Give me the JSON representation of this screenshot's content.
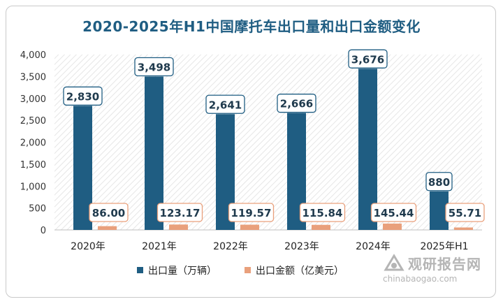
{
  "chart_data": {
    "type": "bar",
    "title": "2020-2025年H1中国摩托车出口量和出口金额变化",
    "categories": [
      "2020年",
      "2021年",
      "2022年",
      "2023年",
      "2024年",
      "2025年H1"
    ],
    "series": [
      {
        "name": "出口量（万辆）",
        "values": [
          2830,
          3498,
          2641,
          2666,
          3676,
          880
        ],
        "labels": [
          "2,830",
          "3,498",
          "2,641",
          "2,666",
          "3,676",
          "880"
        ],
        "color": "#1f5d82"
      },
      {
        "name": "出口金额（亿美元）",
        "values": [
          86.0,
          123.17,
          119.57,
          115.84,
          145.44,
          55.71
        ],
        "labels": [
          "86.00",
          "123.17",
          "119.57",
          "115.84",
          "145.44",
          "55.71"
        ],
        "color": "#e9a07c"
      }
    ],
    "ylim": [
      0,
      4000
    ],
    "yticks": [
      0,
      500,
      1000,
      1500,
      2000,
      2500,
      3000,
      3500,
      4000
    ],
    "ytick_labels": [
      "0",
      "500",
      "1,000",
      "1,500",
      "2,000",
      "2,500",
      "3,000",
      "3,500",
      "4,000"
    ],
    "grid": false,
    "legend_position": "bottom"
  },
  "watermark": {
    "brand": "观研报告网",
    "url": "chinabaogao.com"
  }
}
